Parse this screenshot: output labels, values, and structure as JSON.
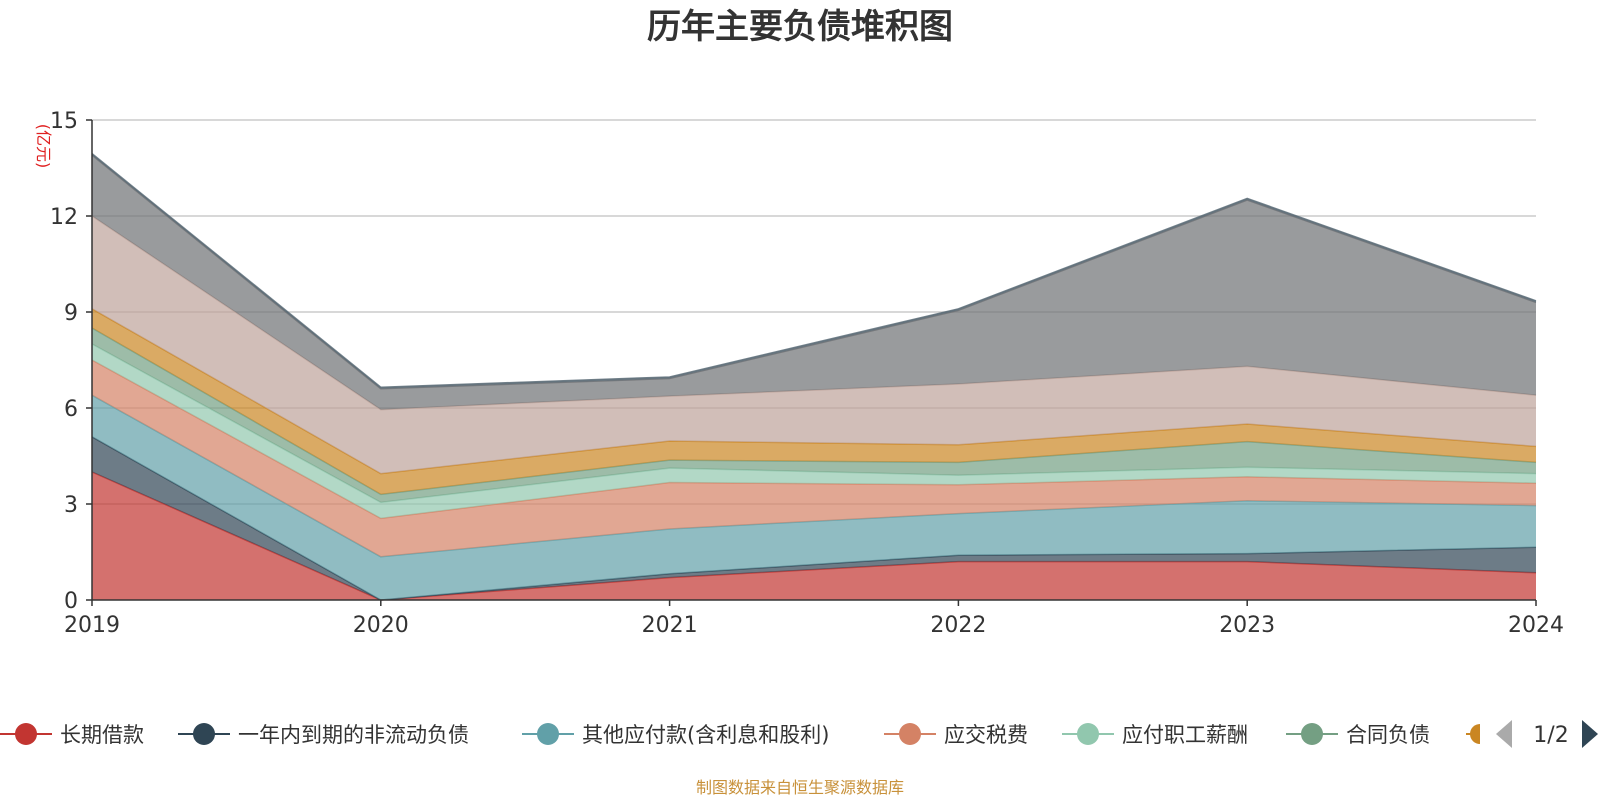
{
  "title": "历年主要负债堆积图",
  "footer": "制图数据来自恒生聚源数据库",
  "legend_page": "1/2",
  "chart_data": {
    "type": "area",
    "stacked": true,
    "title": "历年主要负债堆积图",
    "ylabel": "(亿元)",
    "ylim": [
      0,
      15
    ],
    "yticks": [
      0,
      3,
      6,
      9,
      12,
      15
    ],
    "grid": true,
    "legend_position": "bottom",
    "categories": [
      "2019",
      "2020",
      "2021",
      "2022",
      "2023",
      "2024"
    ],
    "series": [
      {
        "name": "长期借款",
        "color": "#c23531",
        "legend_color": "#c23531",
        "values": [
          4.0,
          0.0,
          0.7,
          1.2,
          1.2,
          0.85
        ]
      },
      {
        "name": "一年内到期的非流动负债",
        "color": "#2f4554",
        "legend_color": "#2f4554",
        "values": [
          1.1,
          0.0,
          0.12,
          0.2,
          0.25,
          0.8
        ]
      },
      {
        "name": "其他应付款(含利息和股利)",
        "color": "#61a0a8",
        "legend_color": "#61a0a8",
        "values": [
          1.3,
          1.35,
          1.4,
          1.3,
          1.65,
          1.3
        ]
      },
      {
        "name": "应交税费",
        "color": "#d48265",
        "legend_color": "#d48265",
        "values": [
          1.1,
          1.2,
          1.45,
          0.9,
          0.75,
          0.7
        ]
      },
      {
        "name": "应付职工薪酬",
        "color": "#91c7ae",
        "legend_color": "#91c7ae",
        "values": [
          0.5,
          0.5,
          0.45,
          0.3,
          0.3,
          0.3
        ]
      },
      {
        "name": "合同负债",
        "color": "#749f83",
        "legend_color": "#749f83",
        "values": [
          0.5,
          0.25,
          0.25,
          0.4,
          0.8,
          0.35
        ]
      },
      {
        "name": "",
        "color": "#ca8622",
        "legend_color": "#ca8622",
        "values": [
          0.6,
          0.65,
          0.6,
          0.55,
          0.55,
          0.5
        ]
      },
      {
        "name": "",
        "color": "#bda29a",
        "legend_color": "#bda29a",
        "values": [
          2.9,
          2.0,
          1.4,
          1.9,
          1.8,
          1.6
        ]
      },
      {
        "name": "",
        "color": "#6e7074",
        "legend_color": "#6e7074",
        "values": [
          1.9,
          0.65,
          0.55,
          2.3,
          5.2,
          2.9
        ]
      },
      {
        "name": "",
        "color": "#546570",
        "legend_color": "#546570",
        "values": [
          0.05,
          0.05,
          0.05,
          0.05,
          0.05,
          0.05
        ]
      }
    ]
  }
}
